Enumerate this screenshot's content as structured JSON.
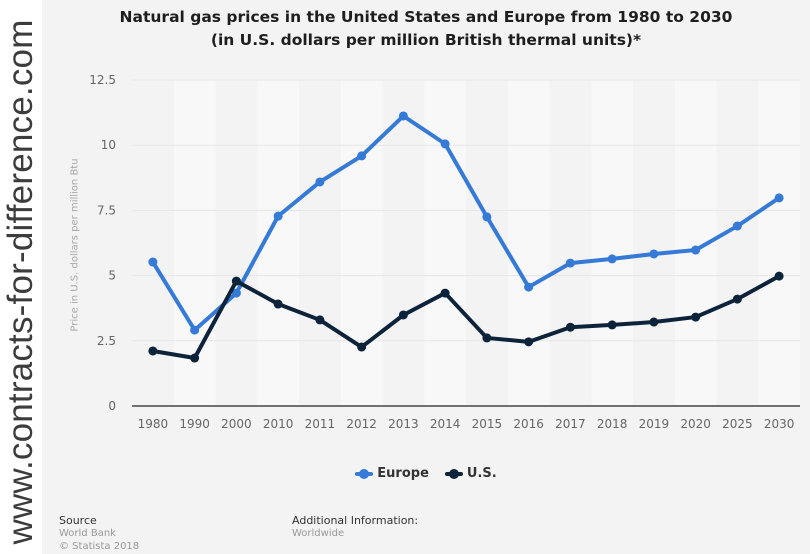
{
  "watermark": "www.contracts-for-difference.com",
  "title_line1": "Natural gas prices in the United States and Europe from 1980 to 2030",
  "title_line2": "(in U.S. dollars per million British thermal units)*",
  "footer": {
    "source_heading": "Source",
    "source_name": "World Bank",
    "copyright": "© Statista 2018",
    "additional_heading": "Additional Information:",
    "additional_value": "Worldwide"
  },
  "chart_data": {
    "type": "line",
    "title": "Natural gas prices in the United States and Europe from 1980 to 2030 (in U.S. dollars per million British thermal units)*",
    "xlabel": "",
    "ylabel": "Price in U.S. dollars per million Btu",
    "categories": [
      "1980",
      "1990",
      "2000",
      "2010",
      "2011",
      "2012",
      "2013",
      "2014",
      "2015",
      "2016",
      "2017",
      "2018",
      "2019",
      "2020",
      "2025",
      "2030"
    ],
    "yticks": [
      "0",
      "2.5",
      "5",
      "7.5",
      "10",
      "12.5"
    ],
    "ylim": [
      0,
      12.5
    ],
    "grid": true,
    "legend_position": "bottom-center",
    "series": [
      {
        "name": "Europe",
        "color": "#347ad6",
        "values": [
          5.52,
          2.91,
          4.33,
          7.28,
          8.59,
          9.59,
          11.12,
          10.05,
          7.25,
          4.56,
          5.48,
          5.64,
          5.83,
          5.98,
          6.9,
          7.98
        ]
      },
      {
        "name": "U.S.",
        "color": "#0d233a",
        "values": [
          2.11,
          1.84,
          4.79,
          3.91,
          3.3,
          2.26,
          3.49,
          4.33,
          2.61,
          2.46,
          3.02,
          3.11,
          3.22,
          3.41,
          4.1,
          4.98
        ]
      }
    ]
  }
}
